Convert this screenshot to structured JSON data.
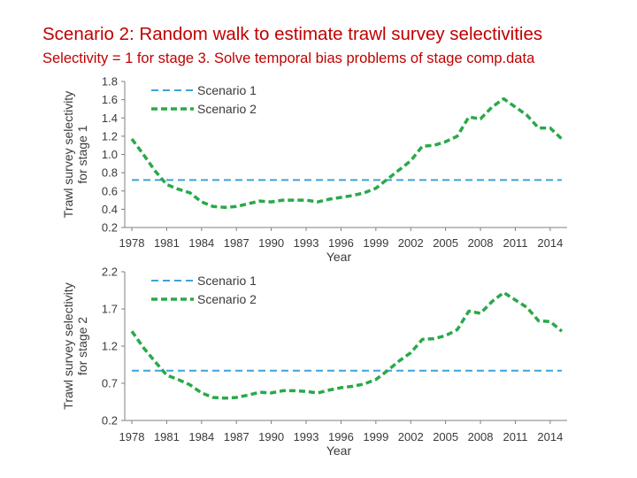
{
  "header": {
    "title": "Scenario 2: Random walk to estimate trawl survey selectivities",
    "subtitle": "Selectivity = 1 for stage 3.  Solve temporal bias problems of stage comp.data"
  },
  "colors": {
    "title": "#c00000",
    "scenario1": "#3ba3d9",
    "scenario2": "#2aa84a",
    "axis": "#7f7f7f",
    "text": "#3a3a3a"
  },
  "chart_data": [
    {
      "type": "line",
      "xlabel": "Year",
      "ylabel_line1": "Trawl survey selectivity",
      "ylabel_line2": "for stage 1",
      "ylim": [
        0.2,
        1.8
      ],
      "yticks": [
        "0.2",
        "0.4",
        "0.6",
        "0.8",
        "1.0",
        "1.2",
        "1.4",
        "1.6",
        "1.8"
      ],
      "xlim": [
        1978,
        2015
      ],
      "xticks": [
        "1978",
        "1981",
        "1984",
        "1987",
        "1990",
        "1993",
        "1996",
        "1999",
        "2002",
        "2005",
        "2008",
        "2011",
        "2014"
      ],
      "grid": false,
      "legend_position": "top-left",
      "x": [
        1978,
        1979,
        1980,
        1981,
        1982,
        1983,
        1984,
        1985,
        1986,
        1987,
        1988,
        1989,
        1990,
        1991,
        1992,
        1993,
        1994,
        1995,
        1996,
        1997,
        1998,
        1999,
        2000,
        2001,
        2002,
        2003,
        2004,
        2005,
        2006,
        2007,
        2008,
        2009,
        2010,
        2011,
        2012,
        2013,
        2014,
        2015
      ],
      "series": [
        {
          "name": "Scenario 1",
          "style": "dashed-thin",
          "values": [
            0.72,
            0.72,
            0.72,
            0.72,
            0.72,
            0.72,
            0.72,
            0.72,
            0.72,
            0.72,
            0.72,
            0.72,
            0.72,
            0.72,
            0.72,
            0.72,
            0.72,
            0.72,
            0.72,
            0.72,
            0.72,
            0.72,
            0.72,
            0.72,
            0.72,
            0.72,
            0.72,
            0.72,
            0.72,
            0.72,
            0.72,
            0.72,
            0.72,
            0.72,
            0.72,
            0.72,
            0.72,
            0.72
          ]
        },
        {
          "name": "Scenario 2",
          "style": "dashed-thick",
          "values": [
            1.17,
            1.0,
            0.82,
            0.67,
            0.62,
            0.58,
            0.48,
            0.43,
            0.42,
            0.43,
            0.46,
            0.49,
            0.48,
            0.5,
            0.5,
            0.5,
            0.48,
            0.51,
            0.53,
            0.55,
            0.58,
            0.63,
            0.73,
            0.83,
            0.93,
            1.09,
            1.1,
            1.14,
            1.2,
            1.41,
            1.39,
            1.52,
            1.61,
            1.52,
            1.43,
            1.29,
            1.29,
            1.17
          ]
        }
      ]
    },
    {
      "type": "line",
      "xlabel": "Year",
      "ylabel_line1": "Trawl survey selectivity",
      "ylabel_line2": "for stage 2",
      "ylim": [
        0.2,
        2.2
      ],
      "yticks": [
        "0.2",
        "0.7",
        "1.2",
        "1.7",
        "2.2"
      ],
      "xlim": [
        1978,
        2015
      ],
      "xticks": [
        "1978",
        "1981",
        "1984",
        "1987",
        "1990",
        "1993",
        "1996",
        "1999",
        "2002",
        "2005",
        "2008",
        "2011",
        "2014"
      ],
      "grid": false,
      "legend_position": "top-left",
      "x": [
        1978,
        1979,
        1980,
        1981,
        1982,
        1983,
        1984,
        1985,
        1986,
        1987,
        1988,
        1989,
        1990,
        1991,
        1992,
        1993,
        1994,
        1995,
        1996,
        1997,
        1998,
        1999,
        2000,
        2001,
        2002,
        2003,
        2004,
        2005,
        2006,
        2007,
        2008,
        2009,
        2010,
        2011,
        2012,
        2013,
        2014,
        2015
      ],
      "series": [
        {
          "name": "Scenario 1",
          "style": "dashed-thin",
          "values": [
            0.87,
            0.87,
            0.87,
            0.87,
            0.87,
            0.87,
            0.87,
            0.87,
            0.87,
            0.87,
            0.87,
            0.87,
            0.87,
            0.87,
            0.87,
            0.87,
            0.87,
            0.87,
            0.87,
            0.87,
            0.87,
            0.87,
            0.87,
            0.87,
            0.87,
            0.87,
            0.87,
            0.87,
            0.87,
            0.87,
            0.87,
            0.87,
            0.87,
            0.87,
            0.87,
            0.87,
            0.87,
            0.87
          ]
        },
        {
          "name": "Scenario 2",
          "style": "dashed-thick",
          "values": [
            1.4,
            1.18,
            0.99,
            0.81,
            0.75,
            0.68,
            0.57,
            0.51,
            0.5,
            0.51,
            0.54,
            0.58,
            0.57,
            0.6,
            0.6,
            0.59,
            0.57,
            0.61,
            0.64,
            0.66,
            0.69,
            0.75,
            0.87,
            1.0,
            1.11,
            1.29,
            1.3,
            1.34,
            1.42,
            1.67,
            1.64,
            1.8,
            1.92,
            1.82,
            1.72,
            1.54,
            1.53,
            1.4
          ]
        }
      ]
    }
  ]
}
